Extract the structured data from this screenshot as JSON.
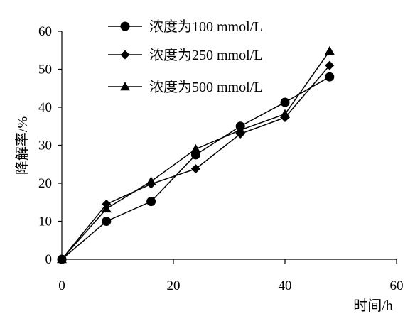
{
  "chart_data": {
    "type": "line",
    "xlabel": "时间/h",
    "ylabel": "降解率/%",
    "xlim": [
      0,
      60
    ],
    "ylim": [
      0,
      60
    ],
    "xticks": [
      0,
      20,
      40,
      60
    ],
    "yticks": [
      0,
      10,
      20,
      30,
      40,
      50,
      60
    ],
    "grid": false,
    "legend_position": "top-center",
    "series": [
      {
        "name": "浓度为100 mmol/L",
        "marker": "circle",
        "color": "#000000",
        "x": [
          0,
          8,
          16,
          24,
          32,
          40,
          48
        ],
        "y": [
          0,
          10,
          15.2,
          27.5,
          35,
          41.3,
          48
        ]
      },
      {
        "name": "浓度为250 mmol/L",
        "marker": "diamond",
        "color": "#000000",
        "x": [
          0,
          8,
          16,
          24,
          32,
          40,
          48
        ],
        "y": [
          0,
          14.5,
          19.8,
          23.8,
          33,
          37.3,
          51
        ]
      },
      {
        "name": "浓度为500 mmol/L",
        "marker": "triangle",
        "color": "#000000",
        "x": [
          0,
          8,
          16,
          24,
          32,
          40,
          48
        ],
        "y": [
          0,
          13.3,
          20.5,
          29,
          34,
          38.2,
          54.8
        ]
      }
    ]
  }
}
